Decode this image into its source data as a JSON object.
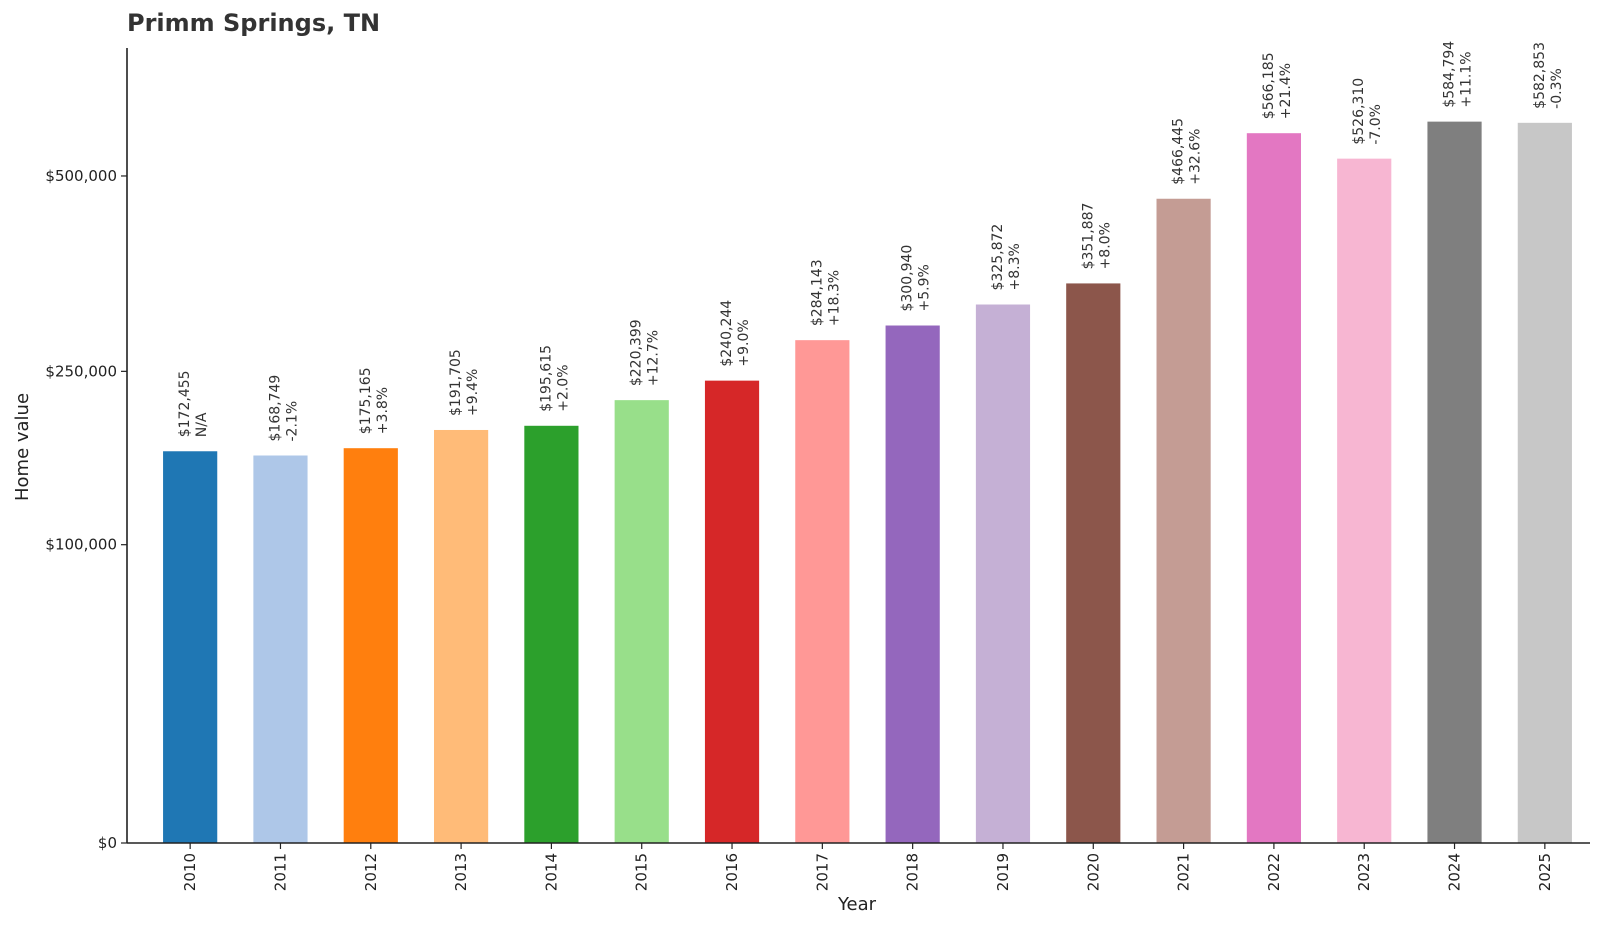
{
  "chart_data": {
    "type": "bar",
    "title": "Primm Springs, TN",
    "xlabel": "Year",
    "ylabel": "Home value",
    "ylim": [
      0,
      585000
    ],
    "y_scale": "sqrt",
    "y_ticks": [
      0,
      100000,
      250000,
      500000
    ],
    "y_tick_labels": [
      "$0",
      "$100,000",
      "$250,000",
      "$500,000"
    ],
    "grid": false,
    "categories": [
      "2010",
      "2011",
      "2012",
      "2013",
      "2014",
      "2015",
      "2016",
      "2017",
      "2018",
      "2019",
      "2020",
      "2021",
      "2022",
      "2023",
      "2024",
      "2025"
    ],
    "values": [
      172455,
      168749,
      175165,
      191705,
      195615,
      220399,
      240244,
      284143,
      300940,
      325872,
      351887,
      466445,
      566185,
      526310,
      584794,
      582853
    ],
    "value_labels": [
      "$172,455",
      "$168,749",
      "$175,165",
      "$191,705",
      "$195,615",
      "$220,399",
      "$240,244",
      "$284,143",
      "$300,940",
      "$325,872",
      "$351,887",
      "$466,445",
      "$566,185",
      "$526,310",
      "$584,794",
      "$582,853"
    ],
    "change_labels": [
      "N/A",
      "-2.1%",
      "+3.8%",
      "+9.4%",
      "+2.0%",
      "+12.7%",
      "+9.0%",
      "+18.3%",
      "+5.9%",
      "+8.3%",
      "+8.0%",
      "+32.6%",
      "+21.4%",
      "-7.0%",
      "+11.1%",
      "-0.3%"
    ],
    "colors": [
      "#1f77b4",
      "#aec7e8",
      "#ff7f0e",
      "#ffbb78",
      "#2ca02c",
      "#98df8a",
      "#d62728",
      "#ff9896",
      "#9467bd",
      "#c5b0d5",
      "#8c564b",
      "#c49c94",
      "#e377c2",
      "#f7b6d2",
      "#7f7f7f",
      "#c7c7c7"
    ]
  }
}
